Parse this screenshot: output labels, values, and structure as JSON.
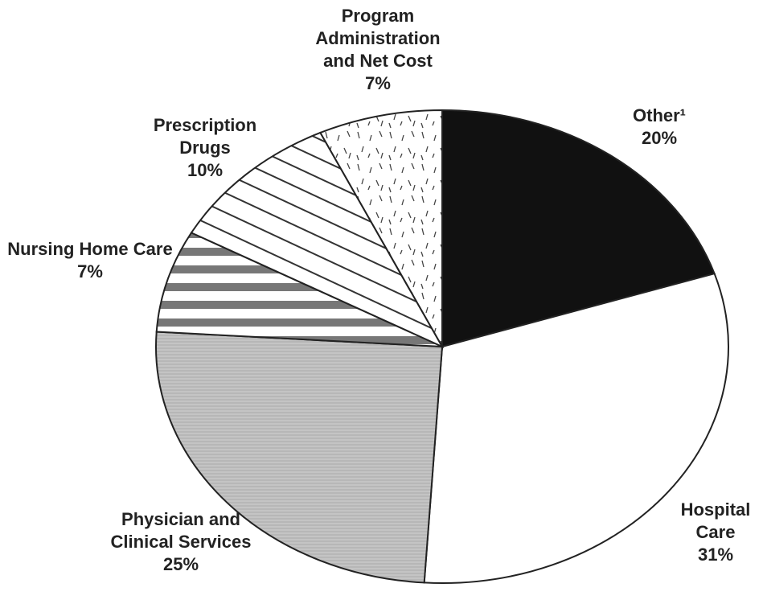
{
  "chart_data": {
    "type": "pie",
    "categories": [
      "Other¹",
      "Hospital Care",
      "Physician and Clinical Services",
      "Nursing Home Care",
      "Prescription Drugs",
      "Program Administration and Net Cost"
    ],
    "values": [
      20,
      31,
      25,
      7,
      10,
      7
    ],
    "value_labels": [
      "20%",
      "31%",
      "25%",
      "7%",
      "10%",
      "7%"
    ],
    "colors": [
      "#111111",
      "#ffffff",
      "#c4c4c4",
      "#ffffff",
      "#ffffff",
      "#ffffff"
    ]
  }
}
